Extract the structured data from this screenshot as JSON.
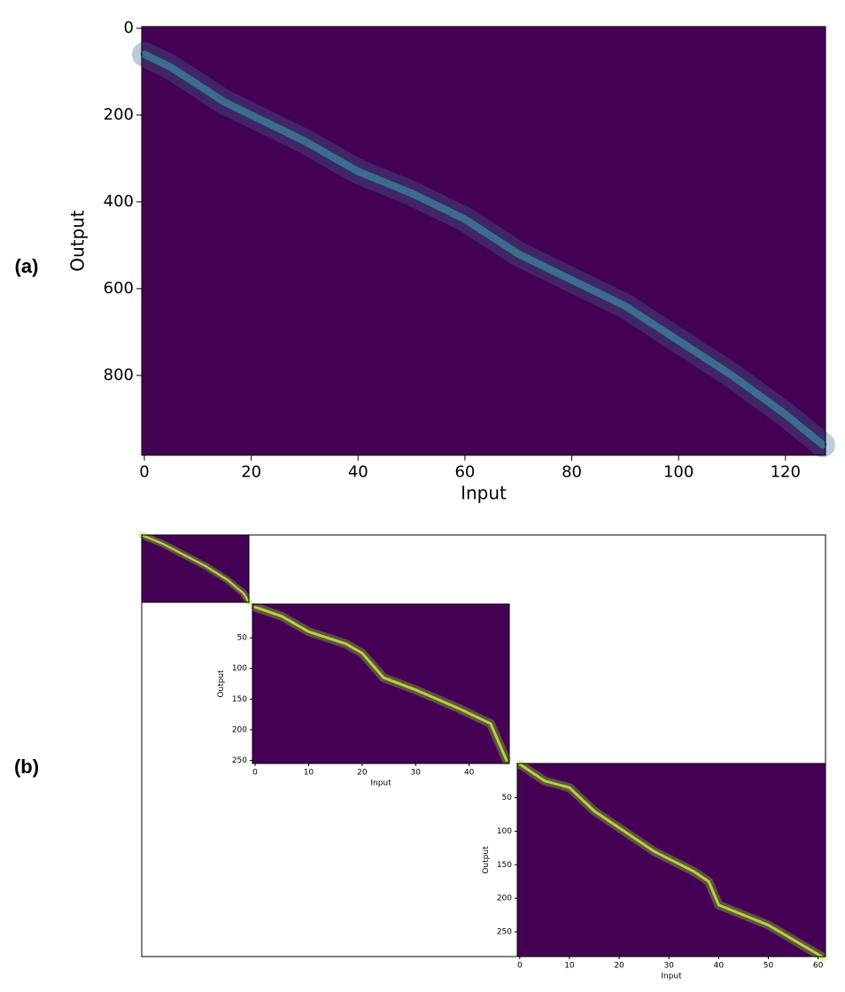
{
  "panel_labels": [
    "(a)",
    "(b)"
  ],
  "chart_data": [
    {
      "type": "heatmap",
      "xlabel": "Input",
      "ylabel": "Output",
      "xlim": [
        -0.5,
        127.5
      ],
      "ylim": [
        984,
        -4
      ],
      "xticks": [
        0,
        20,
        40,
        60,
        80,
        100,
        120
      ],
      "yticks": [
        0,
        200,
        400,
        600,
        800
      ],
      "background": "#440154",
      "x": [
        0,
        5,
        10,
        15,
        20,
        30,
        40,
        50,
        60,
        70,
        80,
        90,
        100,
        110,
        120,
        127
      ],
      "series": [
        {
          "color": "#3b6c8c",
          "values": [
            60,
            90,
            130,
            170,
            200,
            260,
            330,
            380,
            440,
            520,
            580,
            640,
            720,
            800,
            890,
            960
          ]
        }
      ]
    },
    {
      "type": "heatmap",
      "xlim": [
        0,
        20
      ],
      "ylim": [
        60,
        0
      ],
      "background": "#440154",
      "x": [
        0,
        4,
        8,
        12,
        16,
        19,
        20
      ],
      "series": [
        {
          "color": "#a8db34",
          "values": [
            0,
            8,
            18,
            28,
            40,
            52,
            60
          ]
        }
      ]
    },
    {
      "type": "heatmap",
      "xlabel": "Input",
      "ylabel": "Output",
      "xlim": [
        -0.5,
        47.5
      ],
      "ylim": [
        255,
        -5
      ],
      "xticks": [
        0,
        10,
        20,
        30,
        40
      ],
      "yticks": [
        50,
        100,
        150,
        200,
        250
      ],
      "background": "#440154",
      "x": [
        0,
        5,
        10,
        17,
        20,
        24,
        30,
        38,
        44,
        47
      ],
      "series": [
        {
          "color": "#a8db34",
          "values": [
            0,
            15,
            40,
            60,
            75,
            115,
            135,
            165,
            190,
            250
          ]
        }
      ]
    },
    {
      "type": "heatmap",
      "xlabel": "Input",
      "ylabel": "Output",
      "xlim": [
        -0.5,
        61.5
      ],
      "ylim": [
        287,
        -1
      ],
      "xticks": [
        0,
        10,
        20,
        30,
        40,
        50,
        60
      ],
      "yticks": [
        50,
        100,
        150,
        200,
        250
      ],
      "background": "#440154",
      "x": [
        0,
        5,
        10,
        15,
        20,
        27,
        35,
        38,
        40,
        50,
        61
      ],
      "series": [
        {
          "color": "#a8db34",
          "values": [
            0,
            25,
            35,
            70,
            95,
            130,
            160,
            175,
            210,
            240,
            288
          ]
        }
      ]
    }
  ]
}
